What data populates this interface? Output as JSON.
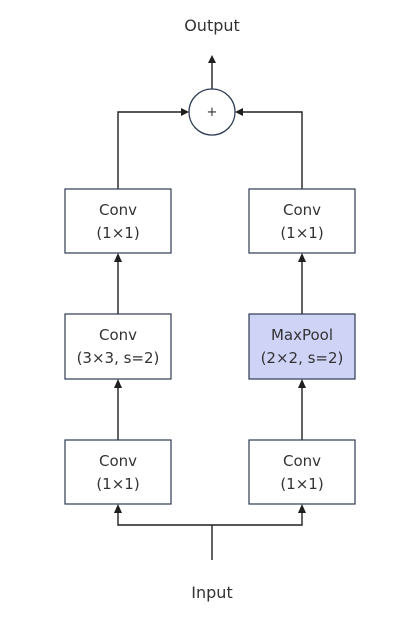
{
  "output_label": "Output",
  "input_label": "Input",
  "sum_symbol": "+",
  "left_branch": [
    {
      "title": "Conv",
      "params": "(1×1)"
    },
    {
      "title": "Conv",
      "params": "(3×3,  s=2)"
    },
    {
      "title": "Conv",
      "params": "(1×1)"
    }
  ],
  "right_branch": [
    {
      "title": "Conv",
      "params": "(1×1)"
    },
    {
      "title": "MaxPool",
      "params": "(2×2,  s=2)"
    },
    {
      "title": "Conv",
      "params": "(1×1)"
    }
  ],
  "colors": {
    "highlight_fill": "#cfd4f7",
    "box_stroke": "#2d3a52",
    "line": "#1f1f1f"
  }
}
